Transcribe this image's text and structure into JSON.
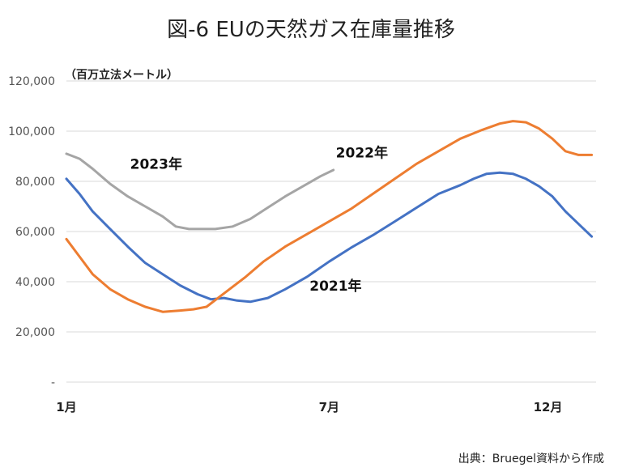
{
  "chart_data": {
    "type": "line",
    "title": "図-6 EUの天然ガス在庫量推移",
    "unit_label": "（百万立法メートル）",
    "source": "出典：Bruegel資料から作成",
    "ylim": [
      0,
      120000
    ],
    "yticks": [
      "-",
      "20,000",
      "40,000",
      "60,000",
      "80,000",
      "100,000",
      "120,000"
    ],
    "ytick_values": [
      0,
      20000,
      40000,
      60000,
      80000,
      100000,
      120000
    ],
    "x_range": [
      1,
      13.1
    ],
    "xticks": [
      {
        "label": "1月",
        "x": 1
      },
      {
        "label": "7月",
        "x": 7
      },
      {
        "label": "12月",
        "x": 12
      }
    ],
    "grid": true,
    "series": [
      {
        "name": "2021年",
        "color": "#4472c4",
        "x": [
          1.0,
          1.3,
          1.6,
          2.0,
          2.4,
          2.8,
          3.2,
          3.6,
          4.0,
          4.3,
          4.6,
          4.9,
          5.2,
          5.6,
          6.0,
          6.5,
          7.0,
          7.5,
          8.0,
          8.5,
          9.0,
          9.5,
          10.0,
          10.3,
          10.6,
          10.9,
          11.2,
          11.5,
          11.8,
          12.1,
          12.4,
          12.7,
          13.0
        ],
        "y": [
          81000,
          75000,
          68000,
          61000,
          54000,
          47500,
          43000,
          38500,
          35000,
          33000,
          33500,
          32500,
          32000,
          33500,
          37000,
          42000,
          48000,
          53500,
          58500,
          64000,
          69500,
          75000,
          78500,
          81000,
          83000,
          83500,
          83000,
          81000,
          78000,
          74000,
          68000,
          63000,
          58000
        ]
      },
      {
        "name": "2022年",
        "color": "#ed7d31",
        "x": [
          1.0,
          1.3,
          1.6,
          2.0,
          2.4,
          2.8,
          3.2,
          3.6,
          3.9,
          4.2,
          4.5,
          4.8,
          5.1,
          5.5,
          6.0,
          6.5,
          7.0,
          7.5,
          8.0,
          8.5,
          9.0,
          9.5,
          10.0,
          10.5,
          10.9,
          11.2,
          11.5,
          11.8,
          12.1,
          12.4,
          12.7,
          13.0
        ],
        "y": [
          57000,
          50000,
          43000,
          37000,
          33000,
          30000,
          28000,
          28500,
          29000,
          30000,
          34000,
          38000,
          42000,
          48000,
          54000,
          59000,
          64000,
          69000,
          75000,
          81000,
          87000,
          92000,
          97000,
          100500,
          103000,
          104000,
          103500,
          101000,
          97000,
          92000,
          90500,
          90500
        ]
      },
      {
        "name": "2023年",
        "color": "#a5a5a5",
        "x": [
          1.0,
          1.3,
          1.6,
          2.0,
          2.4,
          2.8,
          3.2,
          3.5,
          3.8,
          4.1,
          4.4,
          4.8,
          5.2,
          5.6,
          6.0,
          6.4,
          6.8,
          7.1
        ],
        "y": [
          91000,
          89000,
          85000,
          79000,
          74000,
          70000,
          66000,
          62000,
          61000,
          61000,
          61000,
          62000,
          65000,
          69500,
          74000,
          78000,
          82000,
          84500
        ]
      }
    ]
  }
}
